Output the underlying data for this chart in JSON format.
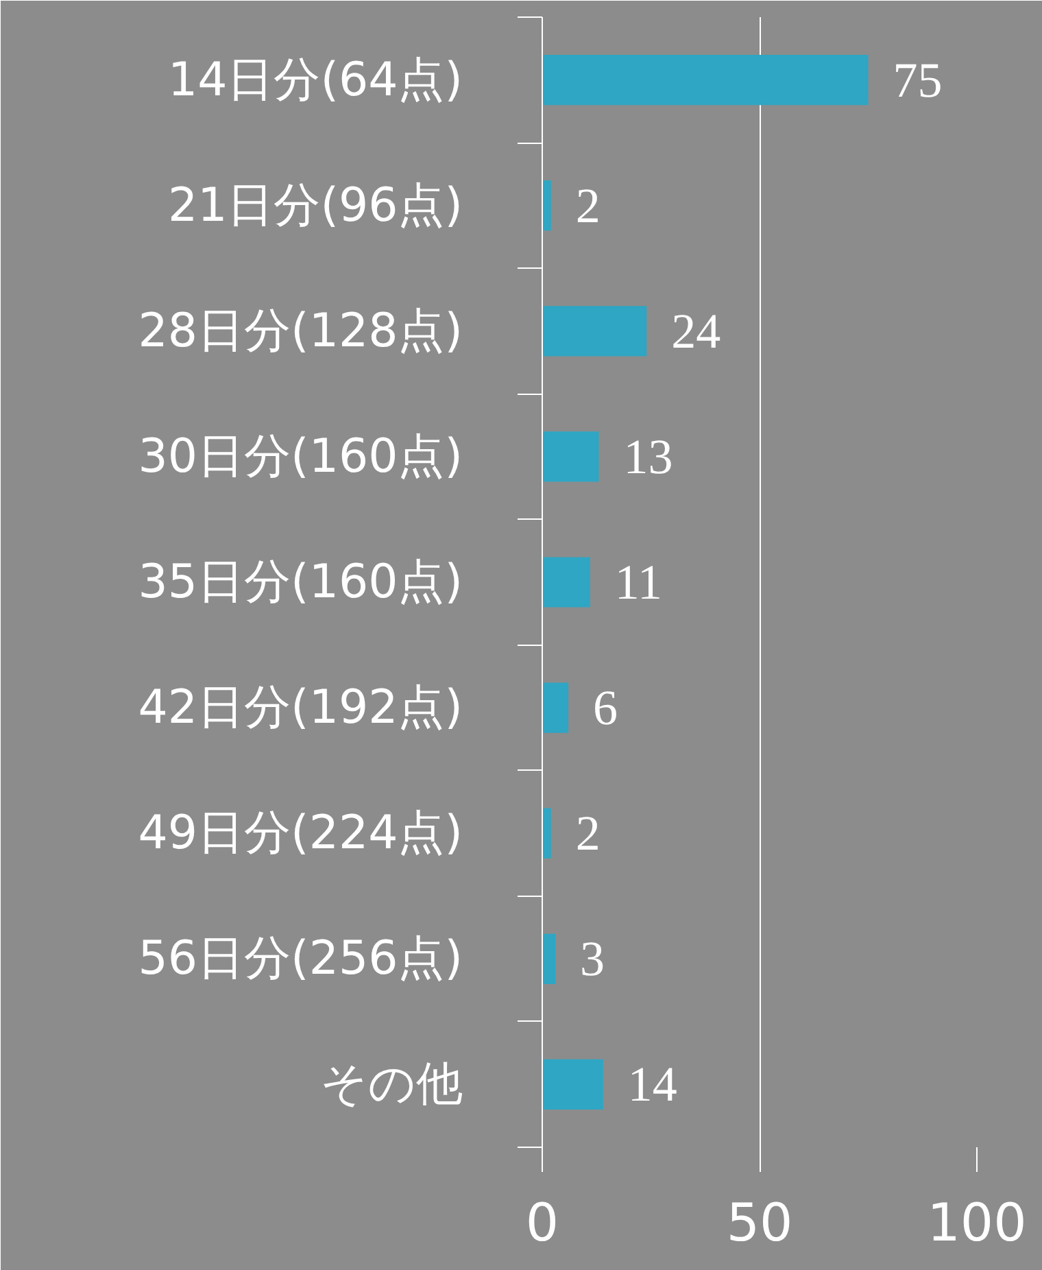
{
  "chart_data": {
    "type": "bar",
    "orientation": "horizontal",
    "categories": [
      "14日分(64点)",
      "21日分(96点)",
      "28日分(128点)",
      "30日分(160点)",
      "35日分(160点)",
      "42日分(192点)",
      "49日分(224点)",
      "56日分(256点)",
      "その他"
    ],
    "values": [
      75,
      2,
      24,
      13,
      11,
      6,
      2,
      3,
      14
    ],
    "color": "#2ea6c4",
    "xlim": [
      0,
      100
    ],
    "xticks": [
      0,
      50,
      100
    ],
    "grid": "x",
    "data_labels": true
  }
}
